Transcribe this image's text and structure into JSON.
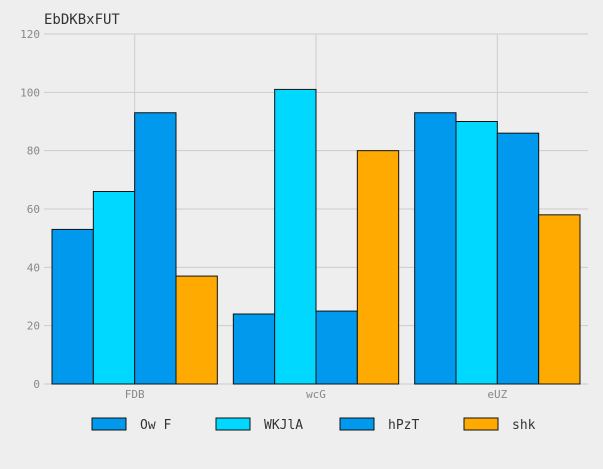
{
  "chart_data": {
    "type": "bar",
    "title": "EbDKBxFUT",
    "xlabel": "",
    "ylabel": "",
    "categories": [
      "FDB",
      "wcG",
      "eUZ"
    ],
    "series": [
      {
        "name": "Ow F",
        "color": "#0099ee",
        "values": [
          53,
          24,
          93
        ]
      },
      {
        "name": "WKJlA",
        "color": "#00d8ff",
        "values": [
          66,
          101,
          90
        ]
      },
      {
        "name": "hPzT",
        "color": "#0099ee",
        "values": [
          93,
          25,
          86
        ]
      },
      {
        "name": "shk",
        "color": "#ffaa00",
        "values": [
          37,
          80,
          58
        ]
      }
    ],
    "ylim": [
      0,
      120
    ],
    "yticks": [
      0,
      20,
      40,
      60,
      80,
      100,
      120
    ],
    "grid": true,
    "legend_position": "bottom",
    "background_color": "#eeeeee",
    "grid_color": "#cccccc"
  }
}
